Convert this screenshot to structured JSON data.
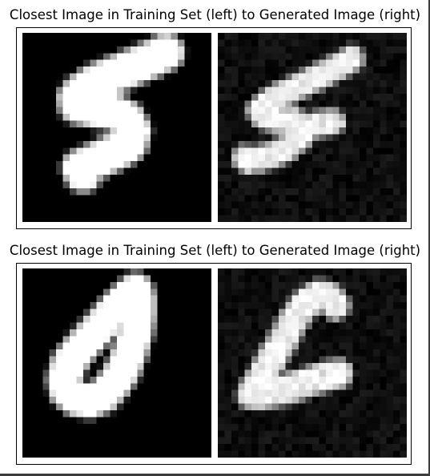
{
  "figure": {
    "panels": [
      {
        "title": "Closest Image in Training Set (left) to Generated Image (right)",
        "left_image": {
          "kind": "training",
          "stroke_points": [
            [
              9.0,
              20.8
            ],
            [
              8.6,
              20.0
            ],
            [
              11.2,
              18.8
            ],
            [
              14.4,
              17.3
            ],
            [
              15.8,
              16.4
            ],
            [
              16.3,
              14.5
            ],
            [
              15.4,
              12.8
            ],
            [
              13.2,
              11.6
            ],
            [
              10.4,
              11.2
            ],
            [
              8.2,
              10.7
            ],
            [
              8.0,
              9.7
            ],
            [
              8.8,
              8.7
            ],
            [
              10.0,
              7.9
            ],
            [
              11.2,
              7.2
            ],
            [
              13.6,
              6.2
            ],
            [
              15.8,
              5.3
            ],
            [
              18.0,
              4.4
            ],
            [
              19.6,
              3.7
            ],
            [
              20.6,
              3.2
            ],
            [
              21.2,
              2.9
            ]
          ],
          "stroke_width": 2.2,
          "intensity": 1.0,
          "noise": 0.0
        },
        "right_image": {
          "kind": "generated",
          "stroke_points": [
            [
              4.0,
              18.5
            ],
            [
              4.6,
              19.0
            ],
            [
              6.4,
              18.6
            ],
            [
              8.6,
              17.9
            ],
            [
              10.6,
              16.9
            ],
            [
              12.2,
              15.5
            ],
            [
              12.4,
              13.8
            ],
            [
              11.2,
              13.0
            ],
            [
              9.2,
              12.9
            ],
            [
              6.8,
              12.4
            ],
            [
              6.2,
              11.6
            ],
            [
              7.0,
              10.7
            ],
            [
              8.6,
              9.6
            ],
            [
              10.6,
              8.6
            ],
            [
              12.8,
              7.6
            ],
            [
              15.0,
              6.5
            ],
            [
              17.0,
              5.4
            ],
            [
              18.8,
              4.5
            ],
            [
              19.8,
              3.8
            ]
          ],
          "stroke_extra": [
            [
              11.4,
              14.6
            ],
            [
              13.6,
              13.9
            ],
            [
              15.6,
              13.3
            ],
            [
              17.0,
              13.2
            ]
          ],
          "stroke_width": 1.3,
          "intensity": 0.95,
          "noise": 0.11
        }
      },
      {
        "title": "Closest Image in Training Set (left) to Generated Image (right)",
        "left_image": {
          "kind": "training",
          "stroke_points": [
            [
              16.6,
              3.4
            ],
            [
              15.6,
              4.2
            ],
            [
              14.2,
              5.6
            ],
            [
              12.4,
              7.6
            ],
            [
              10.4,
              9.8
            ],
            [
              8.4,
              12.0
            ],
            [
              6.8,
              14.2
            ],
            [
              6.2,
              16.4
            ],
            [
              6.6,
              18.2
            ],
            [
              8.0,
              19.3
            ],
            [
              10.0,
              19.6
            ],
            [
              12.0,
              18.8
            ],
            [
              13.6,
              17.0
            ],
            [
              15.0,
              14.8
            ],
            [
              16.0,
              12.2
            ],
            [
              16.8,
              9.4
            ],
            [
              17.2,
              6.8
            ],
            [
              17.2,
              4.6
            ],
            [
              16.8,
              3.2
            ]
          ],
          "stroke_width": 2.0,
          "intensity": 1.0,
          "noise": 0.0
        },
        "right_image": {
          "kind": "generated",
          "stroke_points": [
            [
              17.4,
              5.4
            ],
            [
              16.6,
              4.2
            ],
            [
              15.2,
              3.9
            ],
            [
              13.8,
              4.6
            ],
            [
              12.4,
              6.0
            ],
            [
              11.0,
              8.0
            ],
            [
              9.8,
              10.2
            ],
            [
              8.6,
              12.4
            ],
            [
              7.4,
              14.6
            ],
            [
              6.4,
              16.4
            ],
            [
              5.4,
              17.8
            ],
            [
              5.0,
              18.6
            ],
            [
              6.6,
              18.6
            ],
            [
              9.0,
              18.2
            ],
            [
              11.6,
              17.4
            ],
            [
              14.2,
              16.5
            ],
            [
              16.4,
              15.9
            ],
            [
              17.8,
              15.6
            ]
          ],
          "stroke_width": 1.6,
          "intensity": 0.95,
          "noise": 0.11
        }
      }
    ]
  }
}
